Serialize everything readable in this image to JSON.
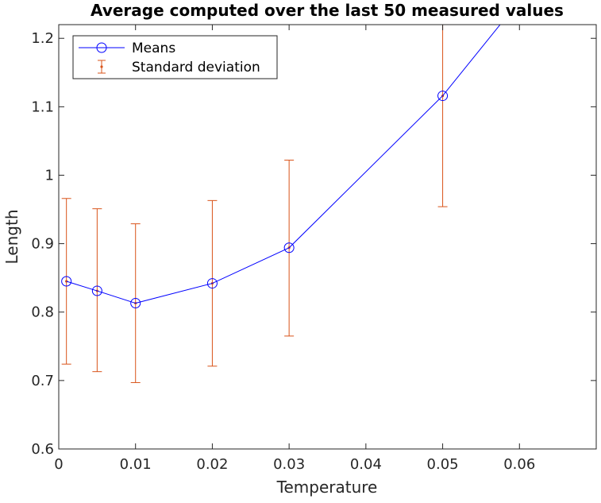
{
  "chart_data": {
    "type": "line",
    "title": "Average computed over the last 50 measured values",
    "xlabel": "Temperature",
    "ylabel": "Length",
    "xlim": [
      0,
      0.07
    ],
    "ylim": [
      0.6,
      1.22
    ],
    "x_ticks": [
      0,
      0.01,
      0.02,
      0.03,
      0.04,
      0.05,
      0.06
    ],
    "x_tick_labels": [
      "0",
      "0.01",
      "0.02",
      "0.03",
      "0.04",
      "0.05",
      "0.06"
    ],
    "y_ticks": [
      0.6,
      0.7,
      0.8,
      0.9,
      1.0,
      1.1,
      1.2
    ],
    "y_tick_labels": [
      "0.6",
      "0.7",
      "0.8",
      "0.9",
      "1",
      "1.1",
      "1.2"
    ],
    "grid": false,
    "legend_position": "top-left",
    "series": [
      {
        "name": "Means",
        "kind": "line-with-circle-markers",
        "color": "#0000ff",
        "x": [
          0.001,
          0.005,
          0.01,
          0.02,
          0.03,
          0.05,
          0.06
        ],
        "y": [
          0.845,
          0.831,
          0.813,
          0.842,
          0.894,
          1.116,
          1.255
        ]
      },
      {
        "name": "Standard deviation",
        "kind": "errorbar",
        "color": "#d95319",
        "x": [
          0.001,
          0.005,
          0.01,
          0.02,
          0.03,
          0.05
        ],
        "y": [
          0.845,
          0.831,
          0.813,
          0.842,
          0.894,
          1.116
        ],
        "lower": [
          0.724,
          0.713,
          0.697,
          0.721,
          0.765,
          0.954
        ],
        "upper": [
          0.966,
          0.951,
          0.929,
          0.963,
          1.022,
          1.278
        ]
      }
    ]
  }
}
